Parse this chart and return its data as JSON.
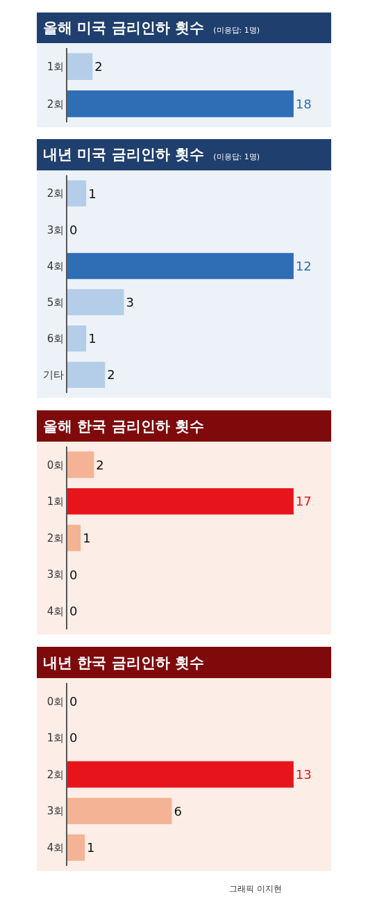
{
  "chart_data": [
    {
      "type": "bar",
      "orientation": "horizontal",
      "title": "올해 미국 금리인하 횟수",
      "subtitle": "(미응답: 1명)",
      "categories": [
        "1회",
        "2회"
      ],
      "values": [
        2,
        18
      ],
      "colors": [
        "#b4cde8",
        "#2f6db5"
      ],
      "data_labels": true,
      "tick_labels": "y"
    },
    {
      "type": "bar",
      "orientation": "horizontal",
      "title": "내년 미국 금리인하 횟수",
      "subtitle": "(미응답: 1명)",
      "categories": [
        "2회",
        "3회",
        "4회",
        "5회",
        "6회",
        "기타"
      ],
      "values": [
        1,
        0,
        12,
        3,
        1,
        2
      ],
      "colors": [
        "#b4cde8",
        "#b4cde8",
        "#2f6db5",
        "#b4cde8",
        "#b4cde8",
        "#b4cde8"
      ],
      "data_labels": true,
      "tick_labels": "y"
    },
    {
      "type": "bar",
      "orientation": "horizontal",
      "title": "올해 한국 금리인하 횟수",
      "categories": [
        "0회",
        "1회",
        "2회",
        "3회",
        "4회"
      ],
      "values": [
        2,
        17,
        1,
        0,
        0
      ],
      "colors": [
        "#f4b394",
        "#e8141c",
        "#f4b394",
        "#f4b394",
        "#f4b394"
      ],
      "data_labels": true,
      "tick_labels": "y"
    },
    {
      "type": "bar",
      "orientation": "horizontal",
      "title": "내년 한국 금리인하 횟수",
      "categories": [
        "0회",
        "1회",
        "2회",
        "3회",
        "4회"
      ],
      "values": [
        0,
        0,
        13,
        6,
        1
      ],
      "colors": [
        "#f4b394",
        "#f4b394",
        "#e8141c",
        "#f4b394",
        "#f4b394"
      ],
      "data_labels": true,
      "tick_labels": "y",
      "annotations": [
        "그래픽 이지현"
      ]
    }
  ]
}
